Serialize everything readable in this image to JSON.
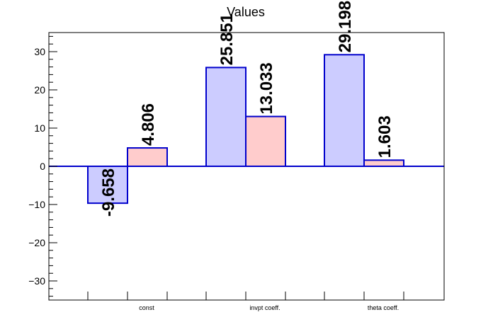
{
  "chart_data": {
    "type": "bar",
    "title": "Values",
    "categories": [
      "const",
      "invpt coeff.",
      "theta coeff."
    ],
    "series": [
      {
        "values": [
          -9.658,
          25.851,
          29.198
        ],
        "labels": [
          "-9.658",
          "25.851",
          "29.198"
        ],
        "fill": "#ccccff",
        "stroke": "#0000cc"
      },
      {
        "values": [
          4.806,
          13.033,
          1.603
        ],
        "labels": [
          "4.806",
          "13.033",
          "1.603"
        ],
        "fill": "#ffcccc",
        "stroke": "#0000cc"
      }
    ],
    "yticks": [
      -30,
      -20,
      -10,
      0,
      10,
      20,
      30
    ],
    "ylim": [
      -35,
      35
    ],
    "grid": false,
    "colors": {
      "axis": "#000000",
      "zero_line": "#0000cc"
    }
  }
}
